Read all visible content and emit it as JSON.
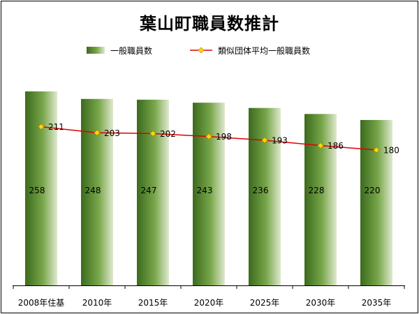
{
  "chart_data": {
    "type": "bar",
    "title": "葉山町職員数推計",
    "categories": [
      "2008年住基",
      "2010年",
      "2015年",
      "2020年",
      "2025年",
      "2030年",
      "2035年"
    ],
    "series": [
      {
        "name": "一般職員数",
        "type": "bar",
        "values": [
          258,
          248,
          247,
          243,
          236,
          228,
          220
        ]
      },
      {
        "name": "類似団体平均一般職員数",
        "type": "line",
        "values": [
          211,
          203,
          202,
          198,
          193,
          186,
          180
        ]
      }
    ],
    "ylim": [
      0,
      300
    ],
    "grid": false,
    "legend": "top",
    "colors": {
      "bar_dark": "#3b6a1d",
      "bar_mid": "#78a64a",
      "bar_light": "#dfe9cf",
      "line": "#e00000",
      "marker": "#ffd700",
      "marker_edge": "#b8860b"
    }
  }
}
